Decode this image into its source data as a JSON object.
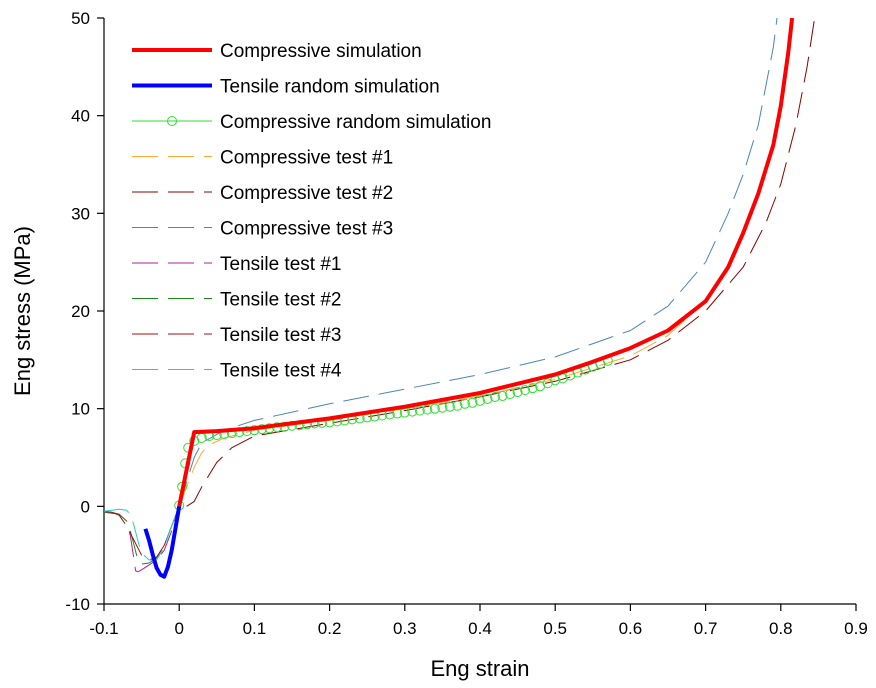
{
  "chart_data": {
    "type": "line",
    "xlabel": "Eng strain",
    "ylabel": "Eng stress (MPa)",
    "xlim": [
      -0.1,
      0.9
    ],
    "ylim": [
      -10,
      50
    ],
    "xticks": [
      -0.1,
      0,
      0.1,
      0.2,
      0.3,
      0.4,
      0.5,
      0.6,
      0.7,
      0.8,
      0.9
    ],
    "yticks": [
      -10,
      0,
      10,
      20,
      30,
      40,
      50
    ],
    "xtick_labels": [
      "-0.1",
      "0",
      "0.1",
      "0.2",
      "0.3",
      "0.4",
      "0.5",
      "0.6",
      "0.7",
      "0.8",
      "0.9"
    ],
    "ytick_labels": [
      "-10",
      "0",
      "10",
      "20",
      "30",
      "40",
      "50"
    ],
    "grid": false,
    "legend_position": "top-left",
    "series": [
      {
        "name": "Compressive simulation",
        "color": "#ff0000",
        "style": "solid",
        "width": 4,
        "x": [
          0,
          0.02,
          0.05,
          0.1,
          0.2,
          0.3,
          0.4,
          0.5,
          0.55,
          0.6,
          0.65,
          0.7,
          0.73,
          0.75,
          0.77,
          0.79,
          0.8,
          0.81,
          0.815
        ],
        "y": [
          0,
          7.6,
          7.7,
          8.0,
          9.0,
          10.2,
          11.6,
          13.5,
          14.8,
          16.2,
          18.0,
          21.0,
          24.5,
          28.0,
          32.0,
          37.0,
          41.0,
          46.5,
          50.0
        ]
      },
      {
        "name": "Tensile random simulation",
        "color": "#0000ff",
        "style": "solid",
        "width": 4,
        "x": [
          -0.045,
          -0.04,
          -0.035,
          -0.03,
          -0.025,
          -0.02,
          -0.015,
          -0.01,
          -0.005,
          0
        ],
        "y": [
          -2.3,
          -3.5,
          -5.0,
          -6.3,
          -7.0,
          -7.2,
          -6.2,
          -4.5,
          -2.3,
          0
        ]
      },
      {
        "name": "Compressive random simulation",
        "color": "#33dd33",
        "style": "circles",
        "width": 1,
        "x": [
          0,
          0.004,
          0.008,
          0.012,
          0.02,
          0.03,
          0.04,
          0.05,
          0.06,
          0.07,
          0.08,
          0.09,
          0.1,
          0.11,
          0.12,
          0.13,
          0.14,
          0.15,
          0.16,
          0.17,
          0.18,
          0.19,
          0.2,
          0.21,
          0.22,
          0.23,
          0.24,
          0.25,
          0.26,
          0.27,
          0.28,
          0.29,
          0.3,
          0.31,
          0.32,
          0.33,
          0.34,
          0.35,
          0.36,
          0.37,
          0.38,
          0.39,
          0.4,
          0.41,
          0.42,
          0.43,
          0.44,
          0.45,
          0.46,
          0.47,
          0.48,
          0.49,
          0.5,
          0.51,
          0.52,
          0.53,
          0.54,
          0.55,
          0.56,
          0.57
        ],
        "y": [
          0.1,
          2.0,
          4.4,
          6.0,
          6.7,
          7.0,
          7.2,
          7.3,
          7.4,
          7.5,
          7.6,
          7.7,
          7.8,
          7.9,
          8.0,
          8.1,
          8.15,
          8.25,
          8.3,
          8.4,
          8.5,
          8.55,
          8.6,
          8.7,
          8.8,
          8.9,
          9.0,
          9.1,
          9.2,
          9.3,
          9.4,
          9.5,
          9.6,
          9.7,
          9.8,
          9.9,
          10.0,
          10.1,
          10.2,
          10.3,
          10.5,
          10.6,
          10.8,
          11.0,
          11.2,
          11.3,
          11.5,
          11.7,
          11.9,
          12.1,
          12.3,
          12.6,
          12.9,
          13.1,
          13.4,
          13.7,
          14.0,
          14.3,
          14.6,
          14.9
        ]
      },
      {
        "name": "Compressive test #1",
        "color": "#ffaa33",
        "style": "dashed",
        "width": 1,
        "x": [
          0,
          0.01,
          0.02,
          0.03,
          0.04,
          0.06,
          0.1,
          0.2,
          0.3,
          0.4,
          0.5,
          0.6,
          0.65,
          0.7,
          0.73,
          0.75,
          0.77,
          0.79,
          0.8
        ],
        "y": [
          0,
          2.0,
          4.0,
          5.5,
          6.3,
          7.0,
          7.8,
          8.8,
          10.0,
          11.3,
          13.0,
          15.4,
          17.5,
          21.0,
          24.8,
          28.0,
          32.0,
          37.0,
          40.0
        ]
      },
      {
        "name": "Compressive test #2",
        "color": "#8b0000",
        "style": "dashed",
        "width": 1,
        "x": [
          0.01,
          0.02,
          0.03,
          0.05,
          0.07,
          0.1,
          0.2,
          0.3,
          0.4,
          0.5,
          0.6,
          0.65,
          0.7,
          0.75,
          0.78,
          0.8,
          0.82,
          0.835,
          0.845
        ],
        "y": [
          0,
          0.5,
          2.0,
          4.5,
          6.0,
          7.2,
          8.5,
          9.8,
          11.2,
          12.8,
          15.0,
          17.0,
          20.0,
          24.5,
          29.0,
          33.0,
          39.0,
          45.0,
          50.0
        ]
      },
      {
        "name": "Compressive test #3",
        "color": "#4a86b8",
        "style": "dashed",
        "width": 1,
        "x": [
          0,
          0.01,
          0.02,
          0.03,
          0.06,
          0.1,
          0.2,
          0.3,
          0.4,
          0.5,
          0.6,
          0.65,
          0.7,
          0.73,
          0.75,
          0.77,
          0.78,
          0.79,
          0.795
        ],
        "y": [
          0,
          2.5,
          5.0,
          6.5,
          7.8,
          8.8,
          10.5,
          12.0,
          13.5,
          15.3,
          18.0,
          20.5,
          25.0,
          30.0,
          34.0,
          39.0,
          43.0,
          47.0,
          50.0
        ]
      },
      {
        "name": "Tensile test #1",
        "color": "#b0209b",
        "style": "dashed",
        "width": 1,
        "x": [
          -0.1,
          -0.08,
          -0.07,
          -0.065,
          -0.06,
          -0.058,
          -0.055,
          -0.05,
          -0.04,
          -0.03,
          -0.02,
          -0.01,
          0
        ],
        "y": [
          -0.6,
          -0.8,
          -1.5,
          -3.0,
          -5.5,
          -6.6,
          -6.7,
          -6.5,
          -6.0,
          -5.5,
          -4.5,
          -2.5,
          0
        ]
      },
      {
        "name": "Tensile test #2",
        "color": "#1a8c1a",
        "style": "dashed",
        "width": 1,
        "x": [
          -0.1,
          -0.09,
          -0.08,
          -0.07,
          -0.065,
          -0.06,
          -0.055,
          -0.05,
          -0.04,
          -0.03,
          -0.02,
          -0.01,
          0
        ],
        "y": [
          -0.6,
          -0.6,
          -0.8,
          -1.5,
          -2.5,
          -4.0,
          -5.5,
          -5.9,
          -5.8,
          -5.3,
          -4.0,
          -2.0,
          0
        ]
      },
      {
        "name": "Tensile test #3",
        "color": "#a01010",
        "style": "dashed",
        "width": 1,
        "x": [
          -0.1,
          -0.09,
          -0.08,
          -0.07,
          -0.06,
          -0.05,
          -0.04,
          -0.03,
          -0.02,
          -0.01,
          0
        ],
        "y": [
          -0.5,
          -0.6,
          -0.9,
          -2.0,
          -3.5,
          -5.0,
          -5.5,
          -5.2,
          -4.0,
          -2.0,
          0
        ]
      },
      {
        "name": "Tensile test #4",
        "color": "#22cccc",
        "style": "dashed",
        "width": 1,
        "x": [
          -0.1,
          -0.09,
          -0.08,
          -0.07,
          -0.065,
          -0.06,
          -0.055,
          -0.05,
          -0.04,
          -0.03,
          -0.02,
          -0.01,
          0
        ],
        "y": [
          -0.5,
          -0.4,
          -0.3,
          -0.4,
          -0.8,
          -2.0,
          -3.5,
          -4.8,
          -5.5,
          -5.5,
          -4.2,
          -2.0,
          0
        ]
      }
    ]
  }
}
